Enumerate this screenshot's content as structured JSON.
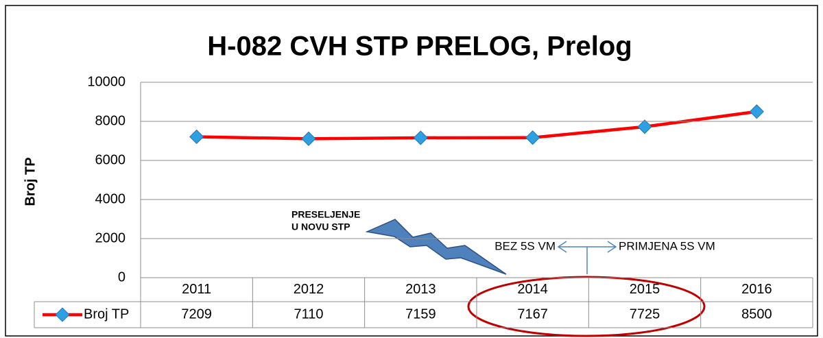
{
  "chart_data": {
    "type": "line",
    "title": "H-082 CVH STP PRELOG, Prelog",
    "y_label": "Broj TP",
    "categories": [
      "2011",
      "2012",
      "2013",
      "2014",
      "2015",
      "2016"
    ],
    "series": [
      {
        "name": "Broj TP",
        "color": "#ff0000",
        "marker_color": "#2e9fe0",
        "values": [
          7209,
          7110,
          7159,
          7167,
          7725,
          8500
        ]
      }
    ],
    "ylim": [
      0,
      10000
    ],
    "yticks": [
      0,
      2000,
      4000,
      6000,
      8000,
      10000
    ],
    "grid": true,
    "annotations": [
      "PRESELJENJE",
      "U NOVU STP",
      "BEZ 5S VM",
      "PRIMJENA 5S VM"
    ]
  }
}
